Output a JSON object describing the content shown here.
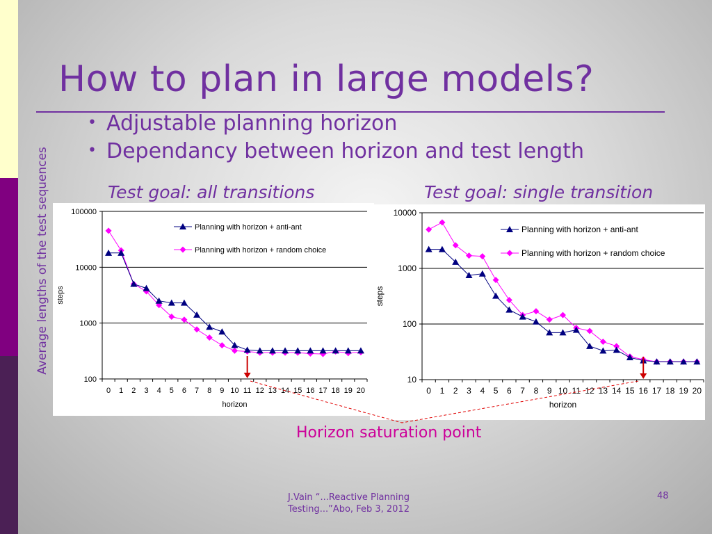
{
  "slide": {
    "title": "How to plan in large models?",
    "bullets": [
      "Adjustable planning horizon",
      "Dependancy between horizon and test length"
    ],
    "vertical_label": "Average lengths of the test sequences",
    "chart_titles": [
      "Test goal: all transitions",
      "Test goal: single transition"
    ],
    "saturation_label": "Horizon saturation point",
    "footer_line1": "J.Vain “...Reactive Planning",
    "footer_line2": "Testing...”Abo, Feb 3, 2012",
    "page_number": "48",
    "colors": {
      "title": "#7030a0",
      "accent": "#cc0099",
      "series_a": "#000080",
      "series_b": "#ff00ff",
      "arrow": "#cc0000"
    }
  },
  "chart_data": [
    {
      "type": "line",
      "title": "",
      "xlabel": "horizon",
      "ylabel": "steps",
      "y_scale": "log",
      "ylim": [
        100,
        100000
      ],
      "y_ticks": [
        "100000",
        "10000",
        "1000",
        "100"
      ],
      "grid": true,
      "legend": "top-right",
      "categories": [
        "0",
        "1",
        "2",
        "3",
        "4",
        "5",
        "6",
        "7",
        "8",
        "9",
        "10",
        "11",
        "12",
        "13",
        "14",
        "15",
        "16",
        "17",
        "18",
        "19",
        "20"
      ],
      "series": [
        {
          "name": "Planning with horizon + anti-ant",
          "marker": "triangle",
          "color": "#000080",
          "values": [
            18000,
            18000,
            5000,
            4200,
            2500,
            2300,
            2300,
            1400,
            850,
            700,
            400,
            330,
            320,
            320,
            320,
            320,
            320,
            320,
            320,
            320,
            320
          ]
        },
        {
          "name": "Planning with horizon + random choice",
          "marker": "diamond",
          "color": "#ff00ff",
          "values": [
            45000,
            20000,
            5000,
            3700,
            2100,
            1300,
            1150,
            770,
            550,
            400,
            320,
            310,
            295,
            295,
            295,
            295,
            285,
            280,
            310,
            290,
            300
          ]
        }
      ],
      "saturation_point": 11
    },
    {
      "type": "line",
      "title": "",
      "xlabel": "horizon",
      "ylabel": "steps",
      "y_scale": "log",
      "ylim": [
        10,
        10000
      ],
      "y_ticks": [
        "10000",
        "1000",
        "100",
        "10"
      ],
      "grid": true,
      "legend": "top-right",
      "categories": [
        "0",
        "1",
        "2",
        "3",
        "4",
        "5",
        "6",
        "7",
        "8",
        "9",
        "10",
        "11",
        "12",
        "13",
        "14",
        "15",
        "16",
        "17",
        "18",
        "19",
        "20"
      ],
      "series": [
        {
          "name": "Planning with horizon  + anti-ant",
          "marker": "triangle",
          "color": "#000080",
          "values": [
            2200,
            2200,
            1300,
            750,
            800,
            320,
            180,
            135,
            110,
            70,
            70,
            78,
            40,
            33,
            34,
            25,
            22,
            21,
            21,
            21,
            21
          ]
        },
        {
          "name": "Planning with horizon + random choice",
          "marker": "diamond",
          "color": "#ff00ff",
          "values": [
            5000,
            6700,
            2600,
            1700,
            1650,
            620,
            270,
            145,
            170,
            120,
            145,
            85,
            75,
            48,
            40,
            26,
            23,
            21,
            21,
            21,
            21
          ]
        }
      ],
      "saturation_point": 16
    }
  ]
}
